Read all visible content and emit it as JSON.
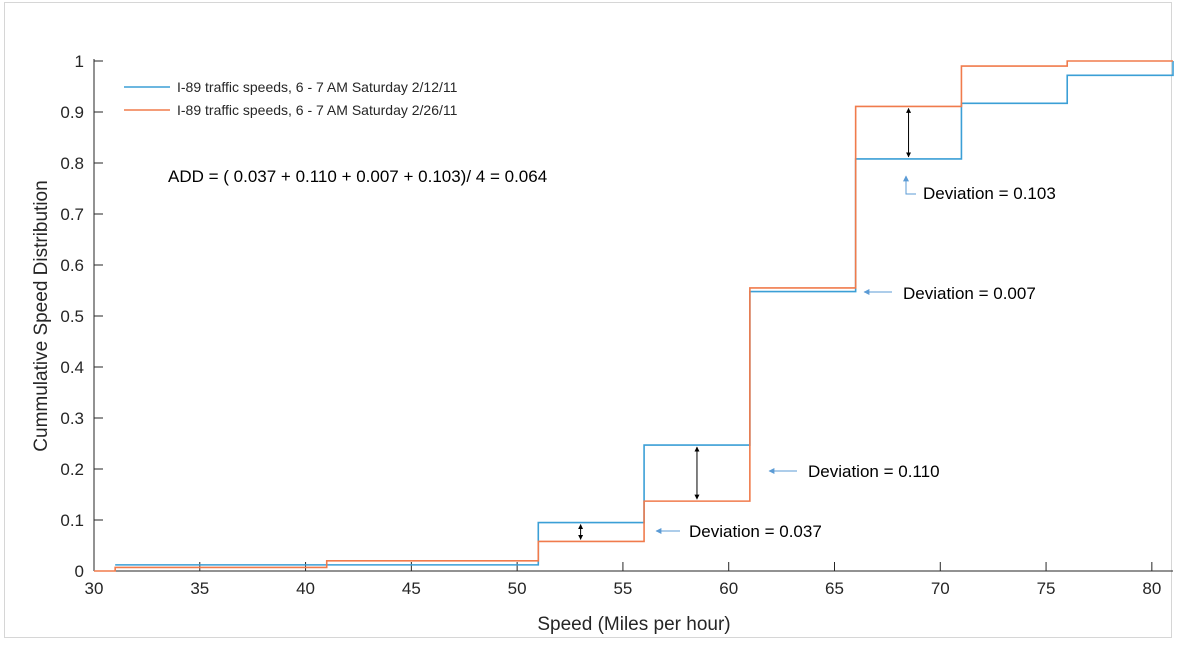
{
  "chart_data": {
    "type": "line",
    "step": "post",
    "xlabel": "Speed (Miles per hour)",
    "ylabel": "Cummulative Speed Distribution",
    "xlim": [
      30,
      81
    ],
    "ylim": [
      0,
      1
    ],
    "xticks": [
      30,
      35,
      40,
      45,
      50,
      55,
      60,
      65,
      70,
      75,
      80
    ],
    "yticks": [
      0,
      0.1,
      0.2,
      0.3,
      0.4,
      0.5,
      0.6,
      0.7,
      0.8,
      0.9,
      1
    ],
    "ytick_labels": [
      "0",
      "0.1",
      "0.2",
      "0.3",
      "0.4",
      "0.5",
      "0.6",
      "0.7",
      "0.8",
      "0.9",
      "1"
    ],
    "grid": false,
    "legend_position": "top-left",
    "series": [
      {
        "name": "I-89 traffic speeds, 6 - 7 AM Saturday 2/12/11",
        "color": "#3b9fd6",
        "x": [
          31,
          51,
          56,
          61,
          66,
          71,
          76,
          81
        ],
        "y": [
          0.012,
          0.095,
          0.247,
          0.548,
          0.808,
          0.917,
          0.972,
          1.0
        ]
      },
      {
        "name": "I-89 traffic speeds, 6 - 7 AM Saturday 2/26/11",
        "color": "#f07b4c",
        "x": [
          30,
          31,
          41,
          51,
          56,
          61,
          66,
          71,
          76,
          81
        ],
        "y": [
          0,
          0.007,
          0.02,
          0.058,
          0.137,
          0.555,
          0.911,
          0.99,
          1.0,
          1.0
        ]
      }
    ],
    "annotations": [
      {
        "text": "ADD = ( 0.037 + 0.110 + 0.007 + 0.103)/ 4 = 0.064"
      },
      {
        "text": "Deviation = 0.037",
        "x": 53,
        "y_low": 0.058,
        "y_high": 0.095
      },
      {
        "text": "Deviation = 0.110",
        "x": 58.5,
        "y_low": 0.137,
        "y_high": 0.247
      },
      {
        "text": "Deviation = 0.007",
        "x": 66,
        "y_low": 0.548,
        "y_high": 0.555
      },
      {
        "text": "Deviation = 0.103",
        "x": 68.5,
        "y_low": 0.808,
        "y_high": 0.911
      }
    ]
  }
}
